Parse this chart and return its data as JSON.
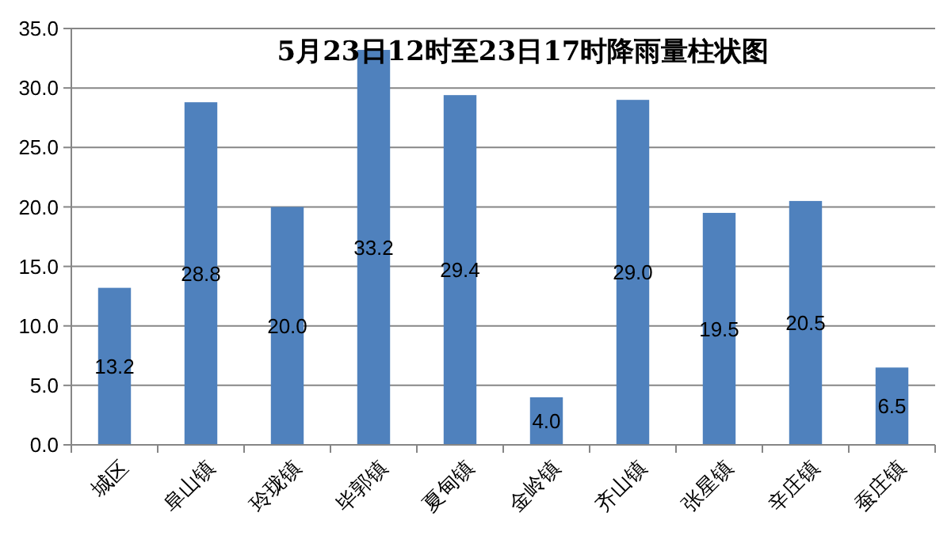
{
  "chart_data": {
    "type": "bar",
    "title": "5月23日12时至23日17时降雨量柱状图",
    "categories": [
      "城区",
      "阜山镇",
      "玲珑镇",
      "毕郭镇",
      "夏甸镇",
      "金岭镇",
      "齐山镇",
      "张星镇",
      "辛庄镇",
      "蚕庄镇"
    ],
    "values": [
      13.2,
      28.8,
      20.0,
      33.2,
      29.4,
      4.0,
      29.0,
      19.5,
      20.5,
      6.5
    ],
    "value_labels": [
      "13.2",
      "28.8",
      "20.0",
      "33.2",
      "29.4",
      "4.0",
      "29.0",
      "19.5",
      "20.5",
      "6.5"
    ],
    "color": "#4f81bd",
    "ylim": [
      0,
      35
    ],
    "yticks": [
      {
        "value": 0,
        "label": "0.0"
      },
      {
        "value": 5,
        "label": "5.0"
      },
      {
        "value": 10,
        "label": "10.0"
      },
      {
        "value": 15,
        "label": "15.0"
      },
      {
        "value": 20,
        "label": "20.0"
      },
      {
        "value": 25,
        "label": "25.0"
      },
      {
        "value": 30,
        "label": "30.0"
      },
      {
        "value": 35,
        "label": "35.0"
      }
    ],
    "grid": "y"
  }
}
